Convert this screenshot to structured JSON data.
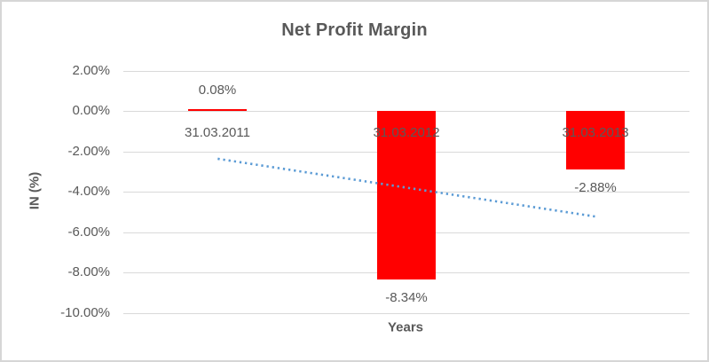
{
  "chart_data": {
    "type": "bar",
    "title": "Net Profit Margin",
    "xlabel": "Years",
    "ylabel": "IN (%)",
    "categories": [
      "31.03.2011",
      "31.03.2012",
      "31.03.2013"
    ],
    "values": [
      0.08,
      -8.34,
      -2.88
    ],
    "data_labels": [
      "0.08%",
      "-8.34%",
      "-2.88%"
    ],
    "y_ticks": [
      2,
      0,
      -2,
      -4,
      -6,
      -8,
      -10
    ],
    "y_tick_labels": [
      "2.00%",
      "0.00%",
      "-2.00%",
      "-4.00%",
      "-6.00%",
      "-8.00%",
      "-10.00%"
    ],
    "ylim": [
      -10,
      2
    ],
    "grid": true,
    "legend": "none",
    "bar_color": "#ff0000",
    "text_color": "#595959",
    "gridline_color": "#d9d9d9",
    "trendline": {
      "style": "dotted",
      "color": "#5b9bd5",
      "start_value": -2.36,
      "end_value": -5.22
    }
  }
}
